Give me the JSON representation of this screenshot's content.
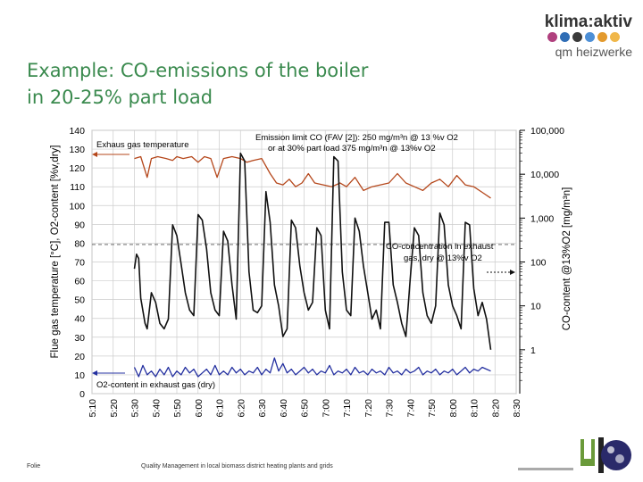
{
  "slide": {
    "title_line1": "Example: CO-emissions of the boiler",
    "title_line2": "in 20-25% part load"
  },
  "logo": {
    "main": "klima:aktiv",
    "sub": "qm heizwerke",
    "dot_colors": [
      "#b0407e",
      "#2f6db5",
      "#3a3a3a",
      "#4d8fd6",
      "#e39a2d",
      "#f0b74a"
    ]
  },
  "footer": {
    "left": "Folie",
    "center": "Quality Management in local biomass district heating plants and grids"
  },
  "chart_data": {
    "type": "line",
    "title": "",
    "xlabel": "",
    "ylabel": "Flue gas temperature [°C], O2-content [%v,dry]",
    "ylabel_right": "CO-content @13%O2 [mg/m³n]",
    "x_ticks": [
      "5:10",
      "5:20",
      "5:30",
      "5:40",
      "5:50",
      "6:00",
      "6:10",
      "6:20",
      "6:30",
      "6:40",
      "6:50",
      "7:00",
      "7:10",
      "7:20",
      "7:30",
      "7:40",
      "7:50",
      "8:00",
      "8:10",
      "8:20",
      "8:30"
    ],
    "y_ticks": [
      0,
      10,
      20,
      30,
      40,
      50,
      60,
      70,
      80,
      90,
      100,
      110,
      120,
      130,
      140
    ],
    "y_right_ticks": [
      "1",
      "10",
      "100",
      "1,000",
      "10,000",
      "100,000"
    ],
    "ylim": [
      0,
      140
    ],
    "y_right_log_range": [
      0.1,
      100000
    ],
    "grid": true,
    "annotations": {
      "exhaust_temp": "Exhaus gas temperature",
      "emission_limit_1": "Emission limit CO (FAV [2]): 250 mg/m³n @ 13 %v O2",
      "emission_limit_2": "or at 30% part load 375 mg/m³n @ 13%v O2",
      "co_conc_1": "CO-concentration in exhaust",
      "co_conc_2": "gas, dry @ 13%v O2",
      "o2": "O2-content in exhaust gas (dry)"
    },
    "series": [
      {
        "name": "Exhaus gas temperature",
        "color": "#b5471b",
        "axis": "left",
        "x_min": [
          20,
          23,
          26,
          28,
          31,
          35,
          38,
          40,
          43,
          47,
          50,
          53,
          56,
          59,
          62,
          66,
          70,
          73,
          76,
          80,
          84,
          87,
          90,
          93,
          96,
          99,
          102,
          105,
          109,
          113,
          117,
          120,
          124,
          128,
          132,
          136,
          140,
          144,
          148,
          152,
          156,
          160,
          164,
          168,
          172,
          176,
          180,
          184,
          188
        ],
        "y": [
          125,
          126,
          115,
          125,
          126,
          125,
          124,
          126,
          125,
          126,
          123,
          126,
          125,
          115,
          125,
          126,
          125,
          123,
          124,
          125,
          117,
          112,
          111,
          114,
          110,
          112,
          117,
          112,
          111,
          110,
          112,
          110,
          115,
          108,
          110,
          111,
          112,
          117,
          112,
          110,
          108,
          112,
          114,
          110,
          116,
          111,
          110,
          107,
          104
        ]
      },
      {
        "name": "CO-concentration in exhaust gas, dry @ 13%v O2",
        "color": "#111111",
        "axis": "right-log",
        "x_min": [
          20,
          21,
          22,
          23,
          25,
          26,
          28,
          30,
          32,
          34,
          36,
          38,
          40,
          42,
          44,
          46,
          48,
          50,
          52,
          54,
          56,
          58,
          60,
          62,
          64,
          66,
          68,
          70,
          72,
          74,
          76,
          78,
          80,
          82,
          84,
          86,
          88,
          90,
          92,
          94,
          96,
          98,
          100,
          102,
          104,
          106,
          108,
          110,
          112,
          114,
          116,
          118,
          120,
          122,
          124,
          126,
          128,
          130,
          132,
          134,
          136,
          138,
          140,
          142,
          144,
          146,
          148,
          150,
          152,
          154,
          156,
          158,
          160,
          162,
          164,
          166,
          168,
          170,
          172,
          174,
          176,
          178,
          180,
          182,
          184,
          186,
          188
        ],
        "y": [
          70,
          150,
          120,
          15,
          4,
          3,
          20,
          12,
          4,
          3,
          5,
          700,
          400,
          90,
          20,
          8,
          6,
          1200,
          900,
          200,
          20,
          8,
          6,
          500,
          300,
          30,
          5,
          30000,
          20000,
          60,
          8,
          7,
          10,
          4000,
          800,
          30,
          10,
          2,
          3,
          900,
          600,
          80,
          20,
          8,
          12,
          600,
          400,
          8,
          3,
          25000,
          20000,
          60,
          8,
          6,
          1000,
          500,
          80,
          20,
          5,
          8,
          3,
          800,
          800,
          30,
          12,
          4,
          2,
          40,
          600,
          400,
          20,
          6,
          4,
          10,
          1300,
          700,
          30,
          10,
          6,
          3,
          800,
          700,
          25,
          6,
          12,
          5,
          1
        ]
      },
      {
        "name": "O2-content in exhaust gas (dry)",
        "color": "#2430a0",
        "axis": "left",
        "x_min": [
          20,
          22,
          24,
          26,
          28,
          30,
          32,
          34,
          36,
          38,
          40,
          42,
          44,
          46,
          48,
          50,
          52,
          54,
          56,
          58,
          60,
          62,
          64,
          66,
          68,
          70,
          72,
          74,
          76,
          78,
          80,
          82,
          84,
          86,
          88,
          90,
          92,
          94,
          96,
          98,
          100,
          102,
          104,
          106,
          108,
          110,
          112,
          114,
          116,
          118,
          120,
          122,
          124,
          126,
          128,
          130,
          132,
          134,
          136,
          138,
          140,
          142,
          144,
          146,
          148,
          150,
          152,
          154,
          156,
          158,
          160,
          162,
          164,
          166,
          168,
          170,
          172,
          174,
          176,
          178,
          180,
          182,
          184,
          186,
          188
        ],
        "y": [
          14,
          9,
          15,
          10,
          12,
          9,
          13,
          10,
          14,
          9,
          12,
          10,
          14,
          11,
          13,
          9,
          11,
          13,
          10,
          15,
          10,
          12,
          10,
          14,
          11,
          13,
          10,
          12,
          11,
          14,
          10,
          13,
          11,
          19,
          12,
          16,
          11,
          13,
          10,
          12,
          14,
          11,
          13,
          10,
          12,
          11,
          15,
          10,
          12,
          11,
          13,
          10,
          14,
          11,
          12,
          10,
          13,
          11,
          12,
          10,
          14,
          11,
          12,
          10,
          13,
          11,
          12,
          14,
          10,
          12,
          11,
          13,
          10,
          12,
          11,
          13,
          10,
          12,
          14,
          11,
          13,
          12,
          14,
          13,
          12
        ]
      }
    ]
  }
}
